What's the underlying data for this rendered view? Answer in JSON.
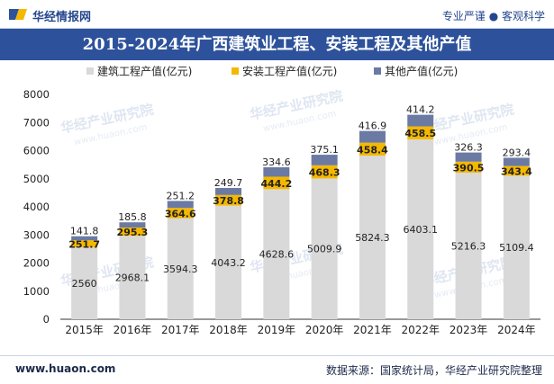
{
  "header": {
    "brand": "华经情报网",
    "tagline": "专业严谨 ● 客观科学",
    "title": "2015-2024年广西建筑业工程、安装工程及其他产值"
  },
  "footer": {
    "site": "www.huaon.com",
    "source": "数据来源：国家统计局，华经产业研究院整理"
  },
  "colors": {
    "title_bg": "#2d529b",
    "construction": "#d9d9d9",
    "installation": "#f5b800",
    "other": "#6b7aa3"
  },
  "chart_data": {
    "type": "bar",
    "stacked": true,
    "categories": [
      "2015年",
      "2016年",
      "2017年",
      "2018年",
      "2019年",
      "2020年",
      "2021年",
      "2022年",
      "2023年",
      "2024年"
    ],
    "series": [
      {
        "name": "建筑工程产值(亿元)",
        "values": [
          2560,
          2968.1,
          3594.3,
          4043.2,
          4628.6,
          5009.9,
          5824.3,
          6403.1,
          5216.3,
          5109.4
        ]
      },
      {
        "name": "安装工程产值(亿元)",
        "values": [
          251.7,
          295.3,
          364.6,
          378.8,
          444.2,
          468.3,
          458.4,
          458.5,
          390.5,
          343.4
        ]
      },
      {
        "name": "其他产值(亿元)",
        "values": [
          141.8,
          185.8,
          251.2,
          249.7,
          334.6,
          375.1,
          416.9,
          414.2,
          326.3,
          293.4
        ]
      }
    ],
    "value_labels": {
      "construction": [
        "2560",
        "2968.1",
        "3594.3",
        "4043.2",
        "4628.6",
        "5009.9",
        "5824.3",
        "6403.1",
        "5216.3",
        "5109.4"
      ],
      "installation": [
        "251.7",
        "295.3",
        "364.6",
        "378.8",
        "444.2",
        "468.3",
        "458.4",
        "458.5",
        "390.5",
        "343.4"
      ],
      "other": [
        "141.8",
        "185.8",
        "251.2",
        "249.7",
        "334.6",
        "375.1",
        "416.9",
        "414.2",
        "326.3",
        "293.4"
      ]
    },
    "ylim": [
      0,
      8000
    ],
    "yticks": [
      "0",
      "1000",
      "2000",
      "3000",
      "4000",
      "5000",
      "6000",
      "7000",
      "8000"
    ],
    "legend_position": "top"
  },
  "watermarks": {
    "cn": "华经产业研究院",
    "url": "www.huaon.com"
  }
}
